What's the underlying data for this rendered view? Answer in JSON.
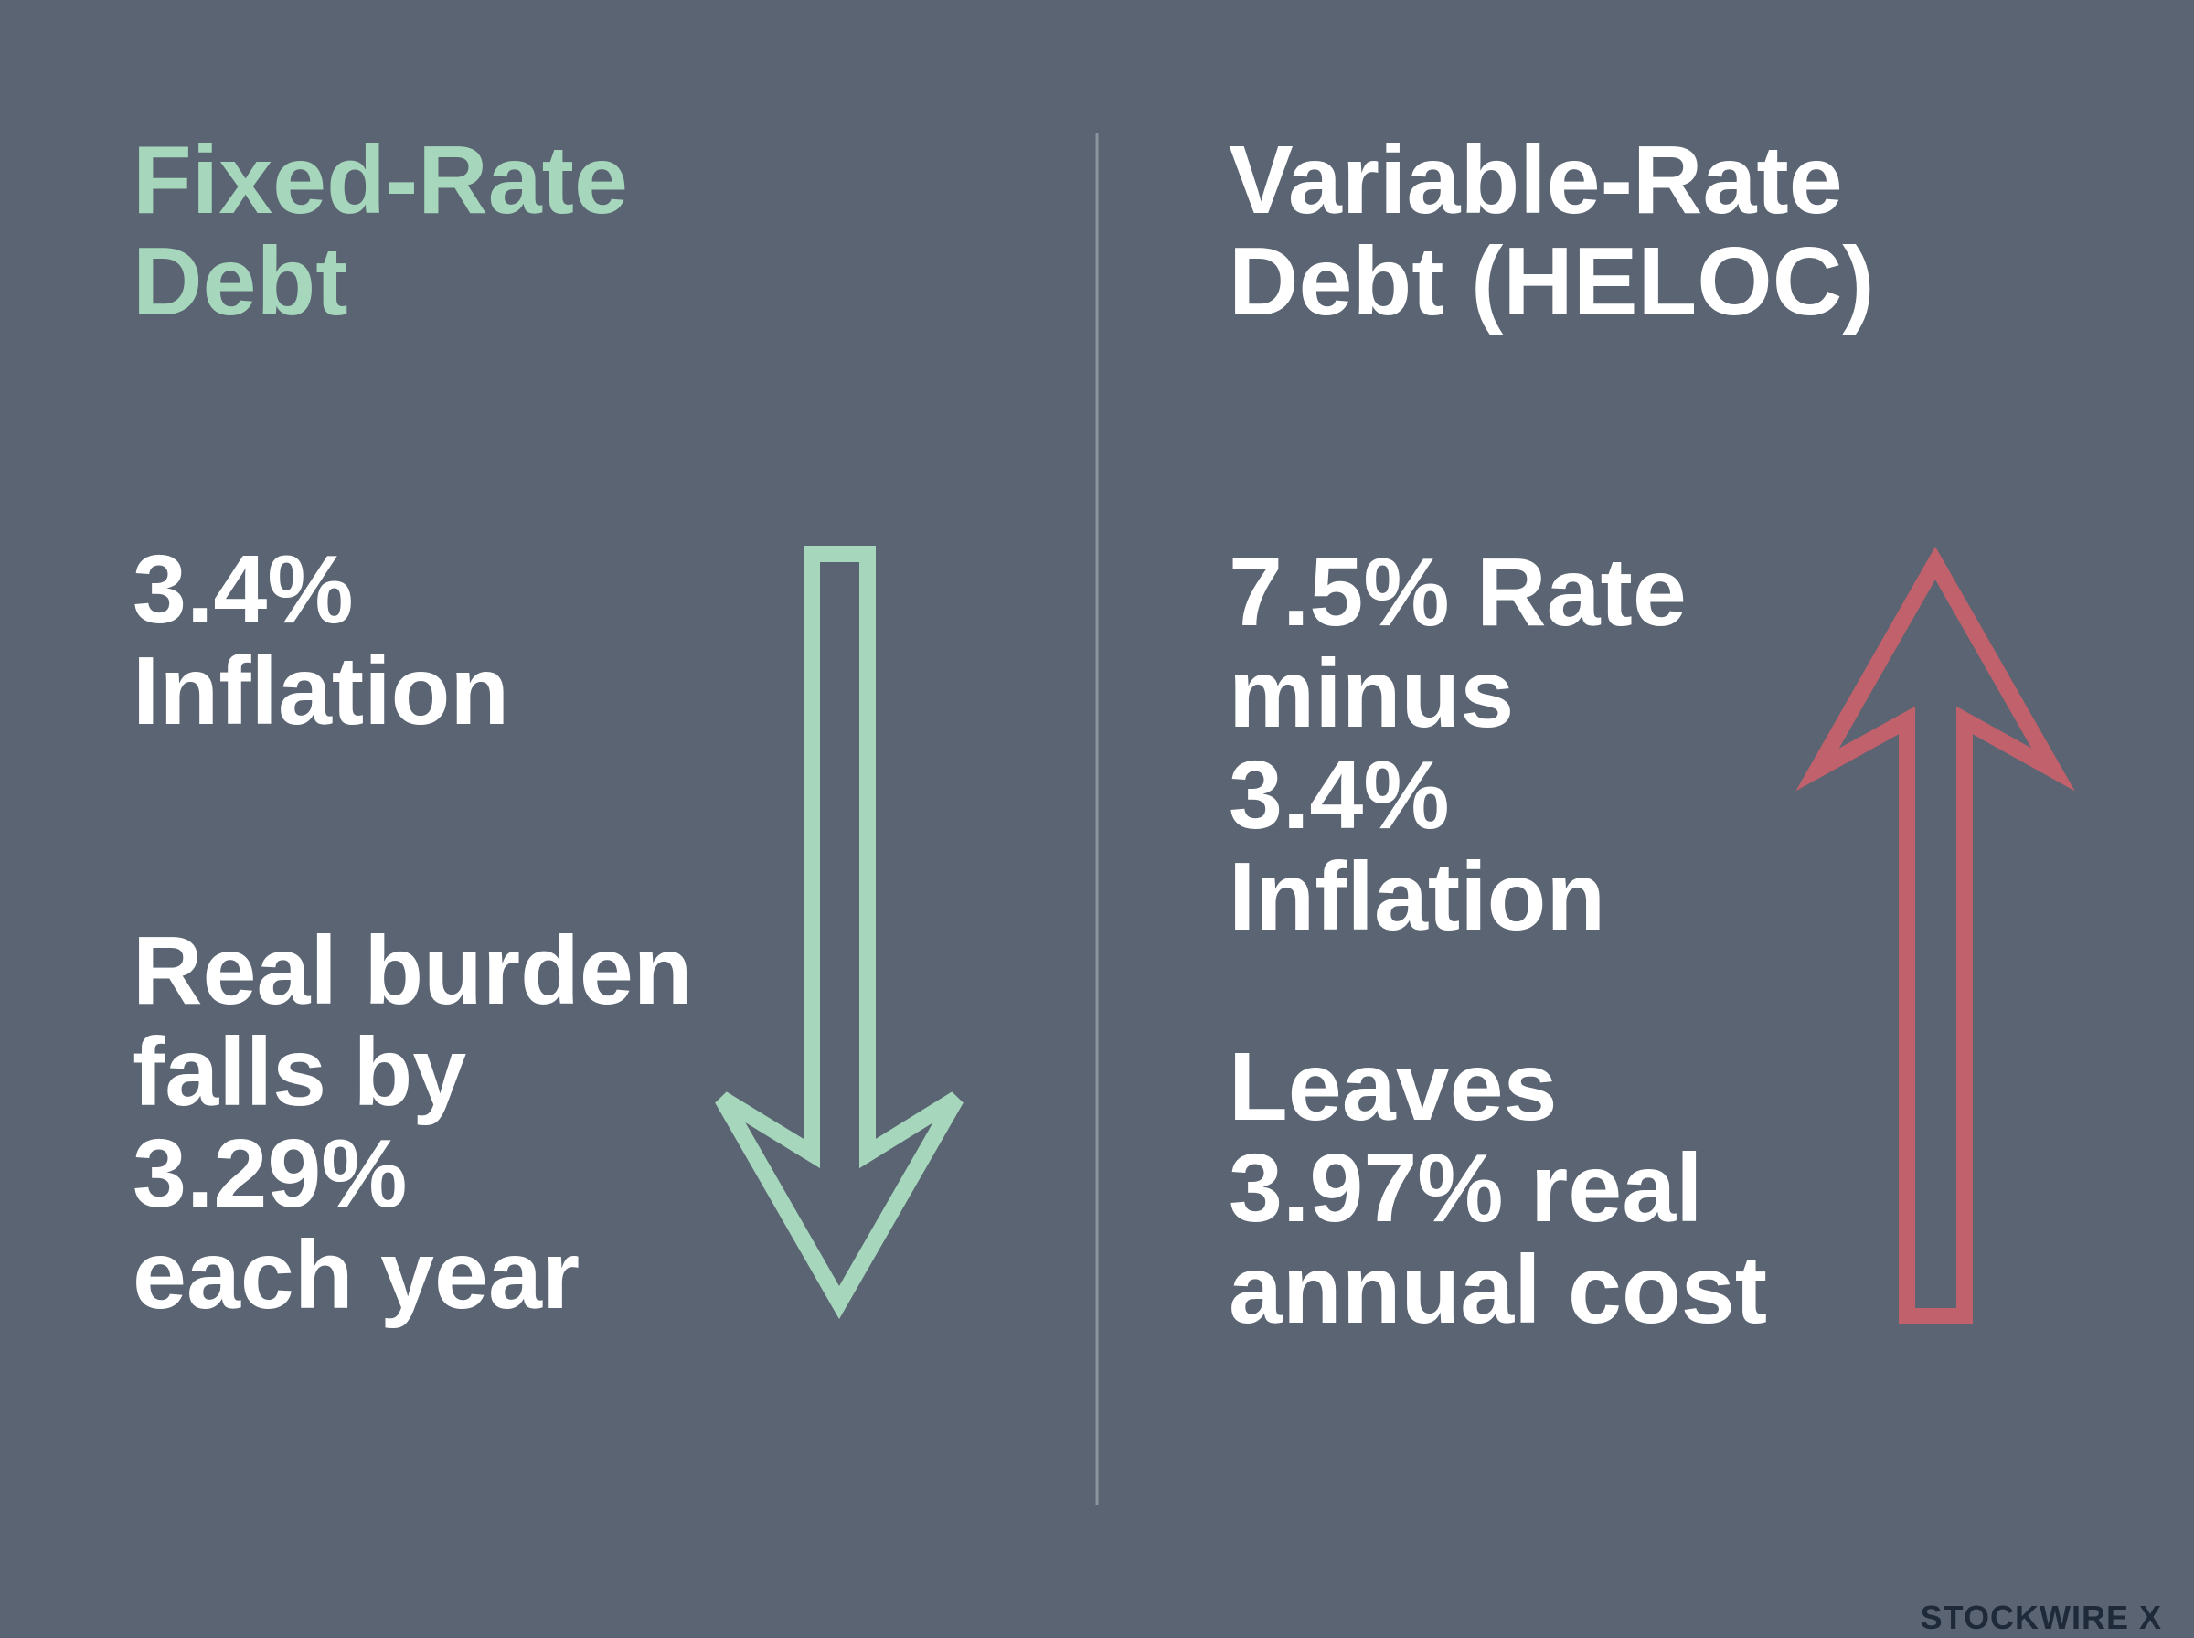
{
  "left": {
    "title": [
      "Fixed-Rate",
      "Debt"
    ],
    "stat": [
      "3.4%",
      "Inflation"
    ],
    "result": [
      "Real burden",
      "falls by",
      "3.29%",
      "each year"
    ]
  },
  "right": {
    "title": [
      "Variable-Rate",
      "Debt (HELOC)"
    ],
    "stat": [
      "7.5% Rate",
      "minus",
      "3.4%",
      "Inflation"
    ],
    "result": [
      "Leaves",
      "3.97% real",
      "annual cost"
    ]
  },
  "brand": "STOCKWIRE X"
}
